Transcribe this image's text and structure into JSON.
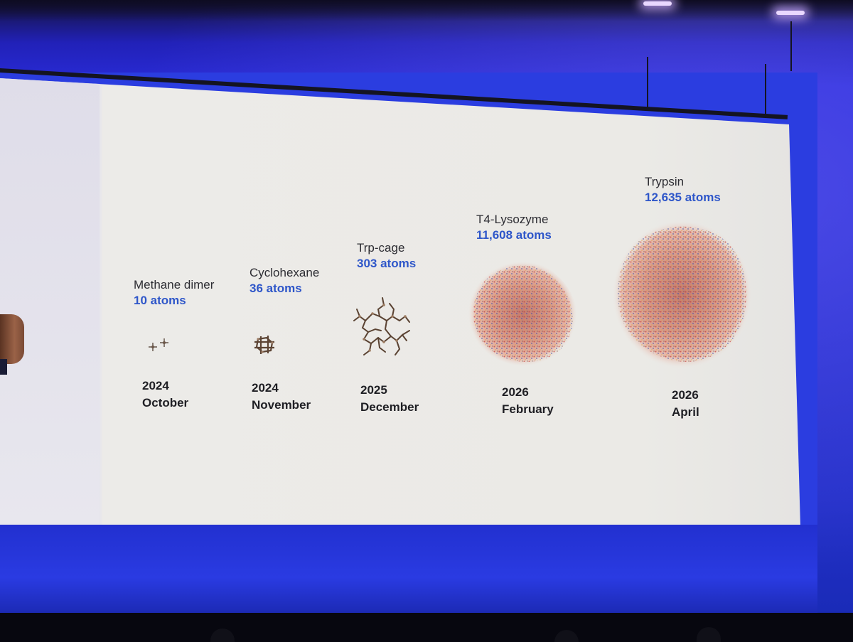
{
  "slide": {
    "molecules": [
      {
        "name": "Methane dimer",
        "atoms": "10 atoms",
        "year": "2024",
        "month": "October"
      },
      {
        "name": "Cyclohexane",
        "atoms": "36 atoms",
        "year": "2024",
        "month": "November"
      },
      {
        "name": "Trp-cage",
        "atoms": "303 atoms",
        "year": "2025",
        "month": "December"
      },
      {
        "name": "T4-Lysozyme",
        "atoms": "11,608 atoms",
        "year": "2026",
        "month": "February"
      },
      {
        "name": "Trypsin",
        "atoms": "12,635 atoms",
        "year": "2026",
        "month": "April"
      }
    ]
  },
  "colors": {
    "atom_count": "#2e56c9",
    "text": "#2d2d33",
    "slide_background": "#ebeae6",
    "stage_blue": "#2a2cd8"
  }
}
